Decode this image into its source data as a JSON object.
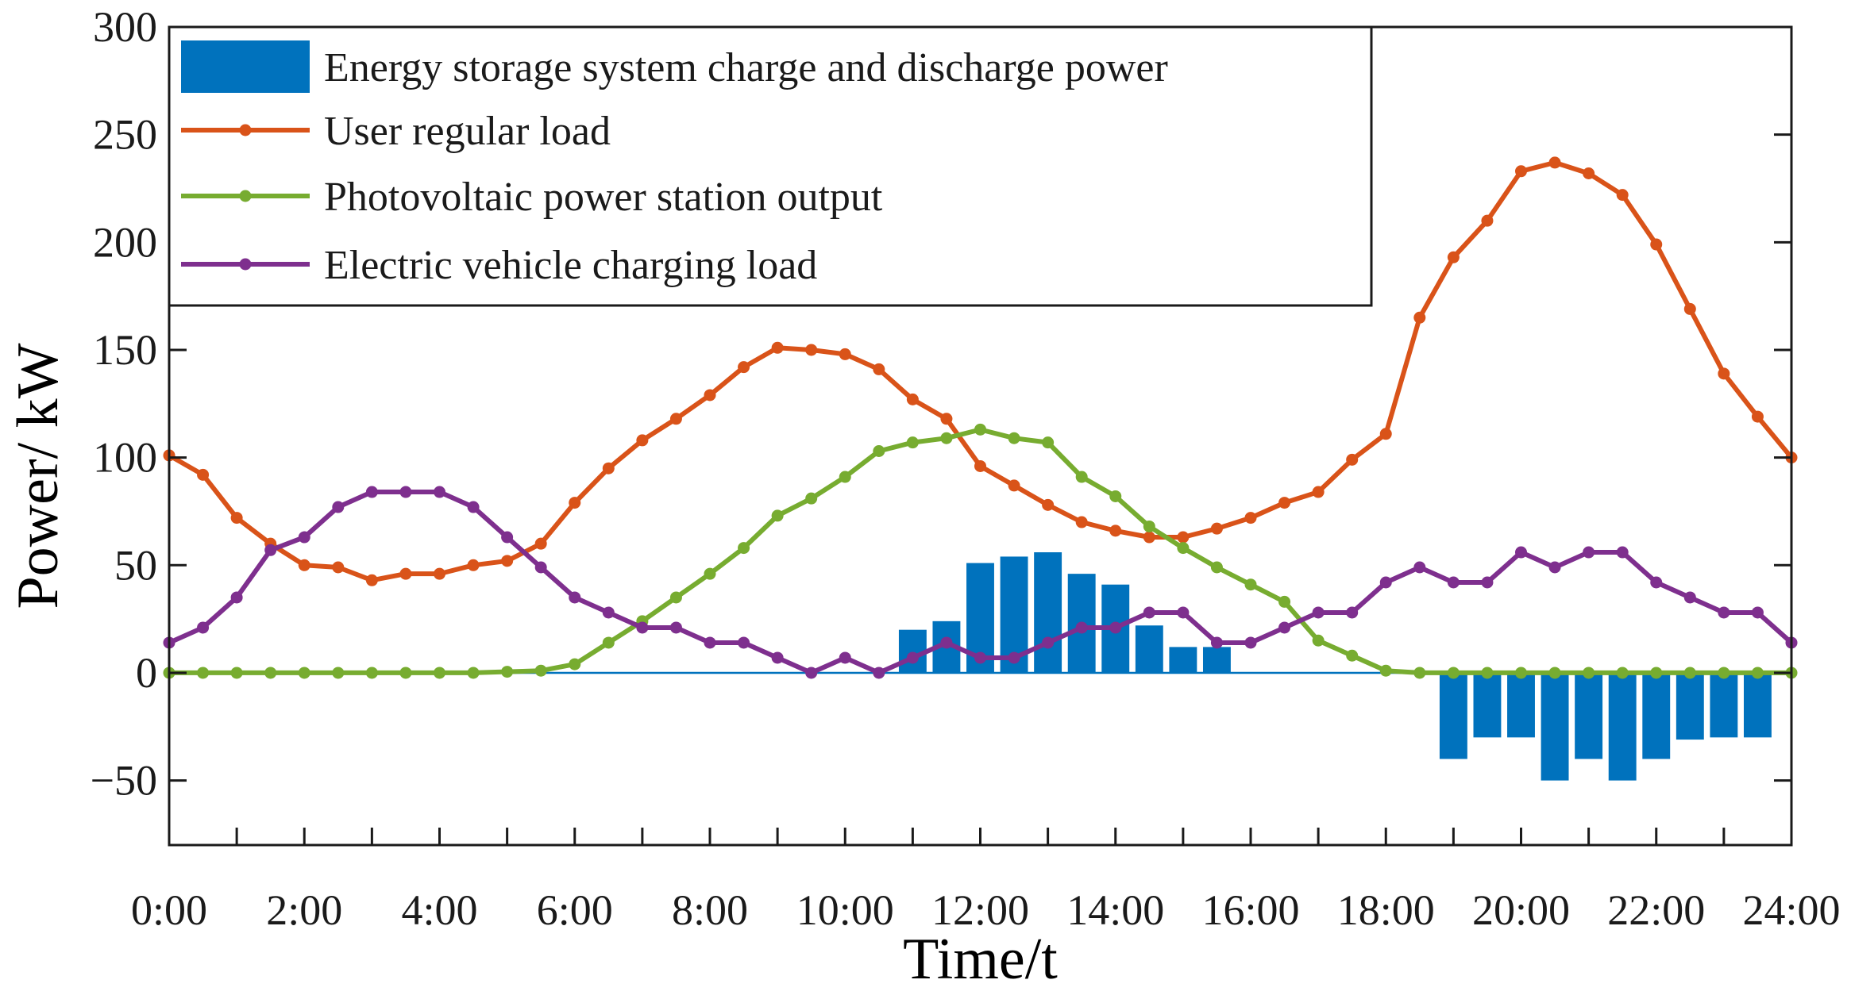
{
  "chart_data": {
    "type": "bar+line",
    "title": "",
    "xlabel": "Time/t",
    "ylabel": "Power/ kW",
    "xlim": [
      0,
      48
    ],
    "ylim": [
      -80,
      300
    ],
    "yticks": [
      -50,
      0,
      50,
      100,
      150,
      200,
      250,
      300
    ],
    "ytick_labels": [
      "−50",
      "0",
      "50",
      "100",
      "150",
      "200",
      "250",
      "300"
    ],
    "xticks": [
      0,
      4,
      8,
      12,
      16,
      20,
      24,
      28,
      32,
      36,
      40,
      44,
      48
    ],
    "xtick_labels": [
      "0:00",
      "2:00",
      "4:00",
      "6:00",
      "8:00",
      "10:00",
      "12:00",
      "14:00",
      "16:00",
      "18:00",
      "20:00",
      "22:00",
      "24:00"
    ],
    "legend_position": "top-left",
    "bars": {
      "name": "Energy storage system charge and discharge power",
      "color": "#0072BD",
      "x": [
        22,
        23,
        24,
        25,
        26,
        27,
        28,
        29,
        30,
        31,
        38,
        39,
        40,
        41,
        42,
        43,
        44,
        45,
        46,
        47
      ],
      "values": [
        20,
        24,
        51,
        54,
        56,
        46,
        41,
        22,
        12,
        12,
        -40,
        -30,
        -30,
        -50,
        -40,
        -50,
        -40,
        -31,
        -30,
        -30
      ]
    },
    "series": [
      {
        "name": "User regular load",
        "color": "#D95319",
        "values": [
          101,
          92,
          72,
          60,
          50,
          49,
          43,
          46,
          46,
          50,
          52,
          60,
          79,
          95,
          108,
          118,
          129,
          142,
          151,
          150,
          148,
          141,
          127,
          118,
          96,
          87,
          78,
          70,
          66,
          63,
          63,
          67,
          72,
          79,
          84,
          99,
          111,
          165,
          193,
          210,
          233,
          237,
          232,
          222,
          199,
          169,
          139,
          119,
          100
        ]
      },
      {
        "name": "Photovoltaic power station output",
        "color": "#77AC30",
        "values": [
          0,
          0,
          0,
          0,
          0,
          0,
          0,
          0,
          0,
          0,
          0.5,
          1,
          4,
          14,
          24,
          35,
          46,
          58,
          73,
          81,
          91,
          103,
          107,
          109,
          113,
          109,
          107,
          91,
          82,
          68,
          58,
          49,
          41,
          33,
          15,
          8,
          1,
          0,
          0,
          0,
          0,
          0,
          0,
          0,
          0,
          0,
          0,
          0,
          0
        ]
      },
      {
        "name": "Electric vehicle charging load",
        "color": "#7E2F8E",
        "values": [
          14,
          21,
          35,
          57,
          63,
          77,
          84,
          84,
          84,
          77,
          63,
          49,
          35,
          28,
          21,
          21,
          14,
          14,
          7,
          0,
          7,
          0,
          7,
          14,
          7,
          7,
          14,
          21,
          21,
          28,
          28,
          14,
          14,
          21,
          28,
          28,
          42,
          49,
          42,
          42,
          56,
          49,
          56,
          56,
          42,
          35,
          28,
          28,
          14
        ]
      }
    ]
  }
}
